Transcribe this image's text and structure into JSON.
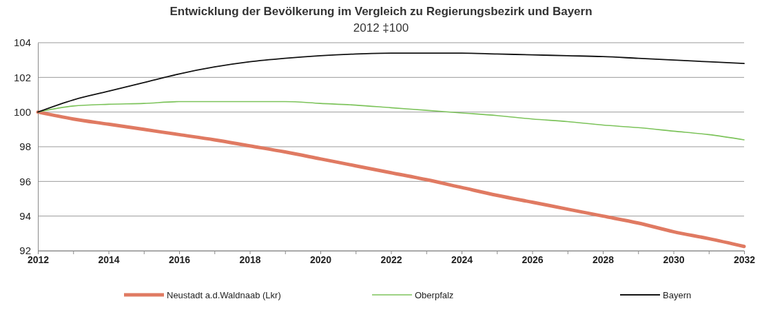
{
  "chart_data": {
    "type": "line",
    "title": "Entwicklung der Bevölkerung im Vergleich zu Regierungsbezirk und Bayern",
    "subtitle": "2012 ‡100",
    "x": [
      2012,
      2013,
      2014,
      2015,
      2016,
      2017,
      2018,
      2019,
      2020,
      2021,
      2022,
      2023,
      2024,
      2025,
      2026,
      2027,
      2028,
      2029,
      2030,
      2031,
      2032
    ],
    "series": [
      {
        "name": "Neustadt a.d.Waldnaab (Lkr)",
        "color": "#e07a62",
        "values": [
          100,
          99.6,
          99.3,
          99.0,
          98.7,
          98.4,
          98.05,
          97.7,
          97.3,
          96.9,
          96.5,
          96.1,
          95.65,
          95.2,
          94.8,
          94.4,
          94.0,
          93.6,
          93.1,
          92.7,
          92.25
        ]
      },
      {
        "name": "Oberpfalz",
        "color": "#7cc35a",
        "values": [
          100,
          100.35,
          100.45,
          100.5,
          100.6,
          100.6,
          100.6,
          100.6,
          100.5,
          100.4,
          100.25,
          100.1,
          99.95,
          99.8,
          99.6,
          99.45,
          99.25,
          99.1,
          98.9,
          98.7,
          98.4
        ]
      },
      {
        "name": "Bayern",
        "color": "#111111",
        "values": [
          100,
          100.7,
          101.2,
          101.7,
          102.2,
          102.6,
          102.9,
          103.1,
          103.25,
          103.35,
          103.4,
          103.4,
          103.4,
          103.35,
          103.3,
          103.25,
          103.2,
          103.1,
          103.0,
          102.9,
          102.8
        ]
      }
    ],
    "xlim": [
      2012,
      2032
    ],
    "xticks": [
      2012,
      {
        "value": 2013,
        "label": null
      },
      2014,
      {
        "value": 2015,
        "label": null
      },
      2016,
      {
        "value": 2017,
        "label": null
      },
      2018,
      {
        "value": 2019,
        "label": null
      },
      2020,
      {
        "value": 2021,
        "label": null
      },
      2022,
      {
        "value": 2023,
        "label": null
      },
      2024,
      {
        "value": 2025,
        "label": null
      },
      2026,
      {
        "value": 2027,
        "label": null
      },
      2028,
      {
        "value": 2029,
        "label": null
      },
      2030,
      {
        "value": 2031,
        "label": null
      },
      2032
    ],
    "ylim": [
      92,
      104
    ],
    "yticks": [
      92,
      94,
      96,
      98,
      100,
      102,
      104
    ],
    "grid": "y",
    "legend": "bottom",
    "marker": "none",
    "line_style": "solid"
  }
}
